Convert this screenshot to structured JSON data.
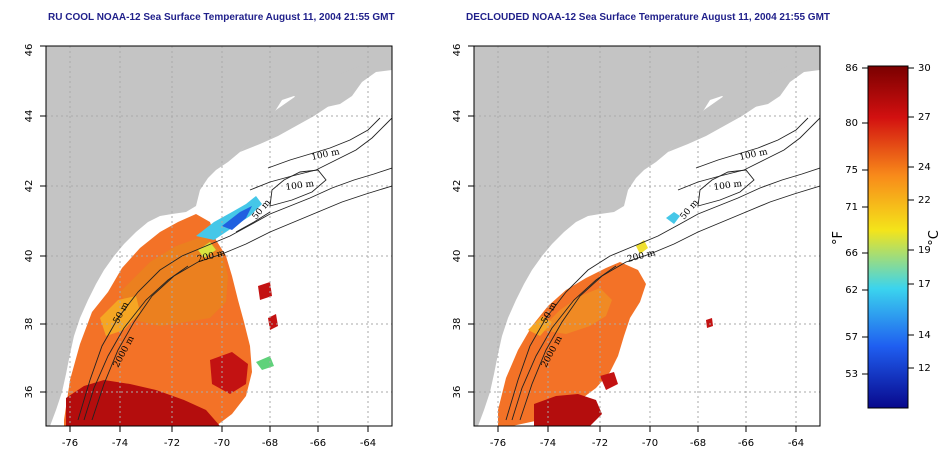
{
  "maps": [
    {
      "title": "RU COOL NOAA-12 Sea Surface Temperature August 11, 2004 21:55 GMT",
      "x_ticks": [
        "-76",
        "-74",
        "-72",
        "-70",
        "-68",
        "-66",
        "-64"
      ],
      "y_ticks": [
        "36",
        "38",
        "40",
        "42",
        "44",
        "46"
      ],
      "contour_labels": [
        "100 m",
        "100 m",
        "50 m",
        "200 m",
        "50 m",
        "2000 m"
      ]
    },
    {
      "title": "DECLOUDED NOAA-12 Sea Surface Temperature August 11, 2004 21:55 GMT",
      "x_ticks": [
        "-76",
        "-74",
        "-72",
        "-70",
        "-68",
        "-66",
        "-64"
      ],
      "y_ticks": [
        "36",
        "38",
        "40",
        "42",
        "44",
        "46"
      ],
      "contour_labels": [
        "100 m",
        "100 m",
        "50 m",
        "200 m",
        "50 m",
        "2000 m"
      ]
    }
  ],
  "colorbar": {
    "fahrenheit_label": "°F",
    "celsius_label": "°C",
    "fahrenheit_ticks": [
      "86",
      "80",
      "75",
      "71",
      "66",
      "62",
      "57",
      "53"
    ],
    "celsius_ticks": [
      "30",
      "27",
      "24",
      "22",
      "19",
      "17",
      "14",
      "12"
    ],
    "colors": [
      "#08088c",
      "#1f5ef0",
      "#3bd4ee",
      "#f4e41a",
      "#f88a1a",
      "#d21010",
      "#7a0000"
    ]
  },
  "colors": {
    "land": "#c4c4c4",
    "ocean": "#ffffff",
    "title": "#1f1f8a",
    "grid": "#aaaaaa"
  }
}
